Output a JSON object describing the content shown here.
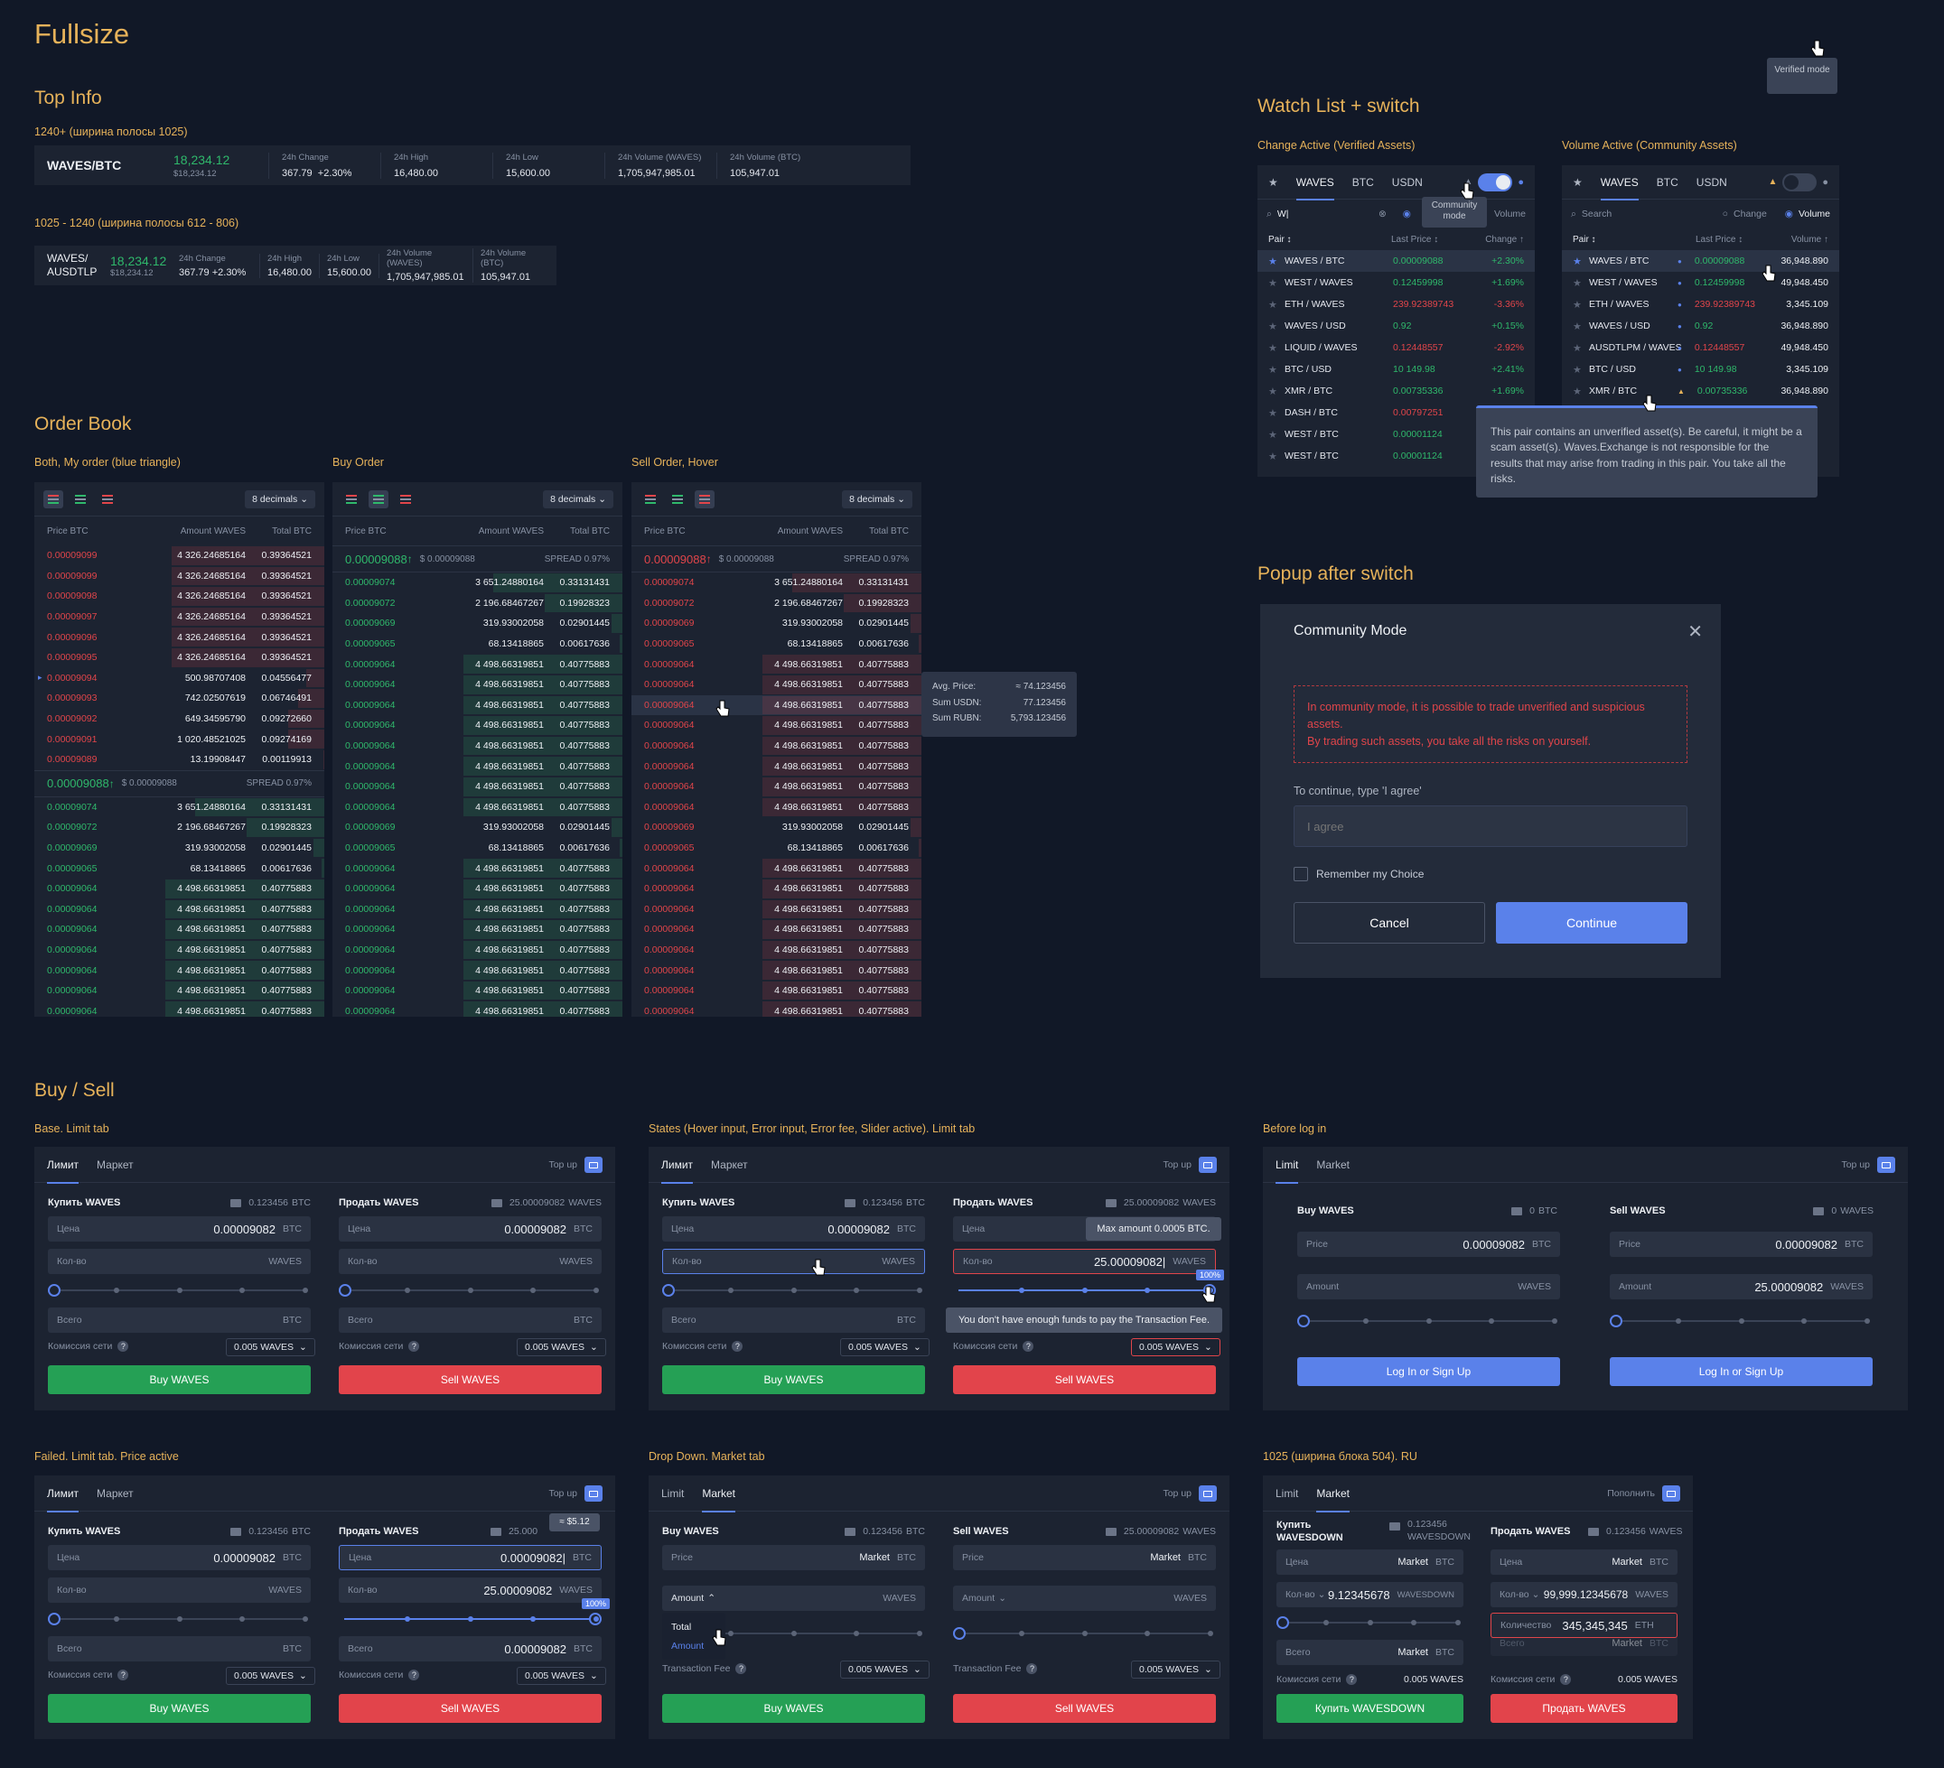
{
  "page_title": "Fullsize",
  "top_info": {
    "title": "Top Info",
    "wide_label": "1240+ (ширина полосы 1025)",
    "narrow_label": "1025 - 1240 (ширина полосы 612 - 806)",
    "pair": "WAVES/BTC",
    "pair_l1": "WAVES/",
    "pair_l2": "AUSDTLP",
    "price": "18,234.12",
    "price_sub": "$18,234.12",
    "change_lbl": "24h Change",
    "change_a": "367.79",
    "change_b": "+2.30%",
    "high_lbl": "24h High",
    "high": "16,480.00",
    "low_lbl": "24h Low",
    "low": "15,600.00",
    "volw_lbl": "24h Volume (WAVES)",
    "volw": "1,705,947,985.01",
    "volb_lbl": "24h Volume (BTC)",
    "volb": "105,947.01"
  },
  "order_book": {
    "title": "Order Book",
    "labels": [
      "Both, My order (blue triangle)",
      "Buy Order",
      "Sell Order, Hover"
    ],
    "decimals": "8 decimals",
    "headers": [
      "Price BTC",
      "Amount WAVES",
      "Total BTC"
    ],
    "last_price": "0.00009088",
    "last_usd": "$ 0.00009088",
    "spread": "SPREAD 0.97%",
    "asks": [
      [
        "0.00009099",
        "4 326.24685164",
        "0.39364521"
      ],
      [
        "0.00009099",
        "4 326.24685164",
        "0.39364521"
      ],
      [
        "0.00009098",
        "4 326.24685164",
        "0.39364521"
      ],
      [
        "0.00009097",
        "4 326.24685164",
        "0.39364521"
      ],
      [
        "0.00009096",
        "4 326.24685164",
        "0.39364521"
      ],
      [
        "0.00009095",
        "4 326.24685164",
        "0.39364521"
      ],
      [
        "0.00009094",
        "500.98707408",
        "0.04556477"
      ],
      [
        "0.00009093",
        "742.02507619",
        "0.06746491"
      ],
      [
        "0.00009092",
        "649.34595790",
        "0.09272660"
      ],
      [
        "0.00009091",
        "1 020.48521025",
        "0.09274169"
      ],
      [
        "0.00009089",
        "13.19908447",
        "0.00119913"
      ]
    ],
    "bids": [
      [
        "0.00009074",
        "3 651.24880164",
        "0.33131431"
      ],
      [
        "0.00009072",
        "2 196.68467267",
        "0.19928323"
      ],
      [
        "0.00009069",
        "319.93002058",
        "0.02901445"
      ],
      [
        "0.00009065",
        "68.13418865",
        "0.00617636"
      ],
      [
        "0.00009064",
        "4 498.66319851",
        "0.40775883"
      ],
      [
        "0.00009064",
        "4 498.66319851",
        "0.40775883"
      ],
      [
        "0.00009064",
        "4 498.66319851",
        "0.40775883"
      ],
      [
        "0.00009064",
        "4 498.66319851",
        "0.40775883"
      ],
      [
        "0.00009064",
        "4 498.66319851",
        "0.40775883"
      ],
      [
        "0.00009064",
        "4 498.66319851",
        "0.40775883"
      ],
      [
        "0.00009064",
        "4 498.66319851",
        "0.40775883"
      ],
      [
        "0.00009064",
        "4 498.66319851",
        "0.40775883"
      ],
      [
        "0.00009069",
        "319.93002058",
        "0.02901445"
      ],
      [
        "0.00009065",
        "68.13418865",
        "0.00617636"
      ],
      [
        "0.00009064",
        "4 498.66319851",
        "0.40775883"
      ],
      [
        "0.00009064",
        "4 498.66319851",
        "0.40775883"
      ],
      [
        "0.00009064",
        "4 498.66319851",
        "0.40775883"
      ],
      [
        "0.00009064",
        "4 498.66319851",
        "0.40775883"
      ],
      [
        "0.00009064",
        "4 498.66319851",
        "0.40775883"
      ],
      [
        "0.00009064",
        "4 498.66319851",
        "0.40775883"
      ],
      [
        "0.00009064",
        "4 498.66319851",
        "0.40775883"
      ],
      [
        "0.00009064",
        "4 498.66319851",
        "0.40775883"
      ]
    ],
    "hover": {
      "avg_lbl": "Avg. Price:",
      "avg": "≈ 74.123456",
      "usdn_lbl": "Sum USDN:",
      "usdn": "77.123456",
      "rubn_lbl": "Sum RUBN:",
      "rubn": "5,793.123456"
    }
  },
  "watch_list": {
    "title": "Watch List + switch",
    "left_label": "Change Active (Verified Assets)",
    "right_label": "Volume Active (Community Assets)",
    "tabs": [
      "WAVES",
      "BTC",
      "USDN"
    ],
    "search_value": "W|",
    "search_placeholder": "Search",
    "opt_change": "Change",
    "opt_volume": "Volume",
    "headers": [
      "Pair ↕",
      "Last Price ↕",
      "Change ↑",
      "Volume ↑"
    ],
    "community_tip": "Community mode",
    "verified_tip": "Verified mode",
    "rows_left": [
      [
        "WAVES / BTC",
        "0.00009088",
        "+2.30%"
      ],
      [
        "WEST / WAVES",
        "0.12459998",
        "+1.69%"
      ],
      [
        "ETH / WAVES",
        "239.92389743",
        "-3.36%"
      ],
      [
        "WAVES / USD",
        "0.92",
        "+0.15%"
      ],
      [
        "LIQUID / WAVES",
        "0.12448557",
        "-2.92%"
      ],
      [
        "BTC / USD",
        "10 149.98",
        "+2.41%"
      ],
      [
        "XMR / BTC",
        "0.00735336",
        "+1.69%"
      ],
      [
        "DASH / BTC",
        "0.00797251",
        ""
      ],
      [
        "WEST / BTC",
        "0.00001124",
        ""
      ],
      [
        "WEST / BTC",
        "0.00001124",
        ""
      ]
    ],
    "rows_right": [
      [
        "WAVES / BTC",
        "0.00009088",
        "36,948.890"
      ],
      [
        "WEST / WAVES",
        "0.12459998",
        "49,948.450"
      ],
      [
        "ETH / WAVES",
        "239.92389743",
        "3,345.109"
      ],
      [
        "WAVES / USD",
        "0.92",
        "36,948.890"
      ],
      [
        "AUSDTLPM / WAVES",
        "0.12448557",
        "49,948.450"
      ],
      [
        "BTC / USD",
        "10 149.98",
        "3,345.109"
      ],
      [
        "XMR / BTC",
        "0.00735336",
        "36,948.890"
      ]
    ],
    "warning": "This pair contains an unverified asset(s). Be careful, it might be a scam asset(s). Waves.Exchange is not responsible for the results that may arise from trading in this pair. You take all the risks."
  },
  "popup": {
    "section": "Popup after switch",
    "title": "Community Mode",
    "warn1": "In community mode, it is possible to trade unverified and suspicious assets.",
    "warn2": "By trading such assets, you take all the risks on yourself.",
    "instr": "To continue, type 'I agree'",
    "placeholder": "I agree",
    "remember": "Remember my Choice",
    "cancel": "Cancel",
    "continue": "Continue"
  },
  "buy_sell": {
    "title": "Buy / Sell",
    "labels": [
      "Base. Limit tab",
      "States (Hover input, Error input, Error fee, Slider active). Limit tab",
      "Before log in",
      "Failed. Limit tab. Price active",
      "Drop Down. Market tab",
      "1025 (ширина блока 504). RU"
    ],
    "ru": {
      "limit": "Лимит",
      "market": "Маркет",
      "buy": "Купить WAVES",
      "sell": "Продать WAVES",
      "price": "Цена",
      "qty": "Кол-во",
      "total": "Всего",
      "fee": "Комиссия сети",
      "topup": "Top up"
    },
    "en": {
      "limit": "Limit",
      "market": "Market",
      "buy": "Buy WAVES",
      "sell": "Sell WAVES",
      "price": "Price",
      "amount": "Amount",
      "total": "Total",
      "fee": "Transaction Fee",
      "topup": "Top up",
      "login": "Log In or Sign Up"
    },
    "bal_btc": "0.123456",
    "bal_waves": "25.00009082",
    "zero": "0",
    "price_val": "0.00009082",
    "price_val_cursor": "0.00009082|",
    "amount_val": "25.00009082",
    "amount_val_cursor": "25.00009082|",
    "btc": "BTC",
    "waves": "WAVES",
    "fee_val": "0.005 WAVES",
    "buy_btn": "Buy WAVES",
    "sell_btn": "Sell WAVES",
    "max_tip": "Max amount 0.0005 BTC.",
    "fund_tip": "You don't have enough funds to pay the Transaction Fee.",
    "pct": "100%",
    "price_tip": "≈ $5.12",
    "bal_waves_trunc": "25.000",
    "market_word": "Market",
    "dd_total": "Total",
    "dd_amount": "Amount",
    "ru2": {
      "topup": "Пополнить",
      "buy": "Купить WAVESDOWN",
      "buy_l1": "Купить",
      "buy_l2": "WAVESDOWN",
      "sell": "Продать WAVES",
      "bal": "0.123456",
      "bal_unit": "WAVESDOWN",
      "bal2": "0.123456",
      "qty_a": "9.12345678",
      "unit_a": "WAVESDOWN",
      "qty_b": "99,999.12345678",
      "qty_c": "345,345,345",
      "unit_c": "ETH",
      "count": "Количество",
      "fee_val": "0.005 WAVES"
    }
  }
}
